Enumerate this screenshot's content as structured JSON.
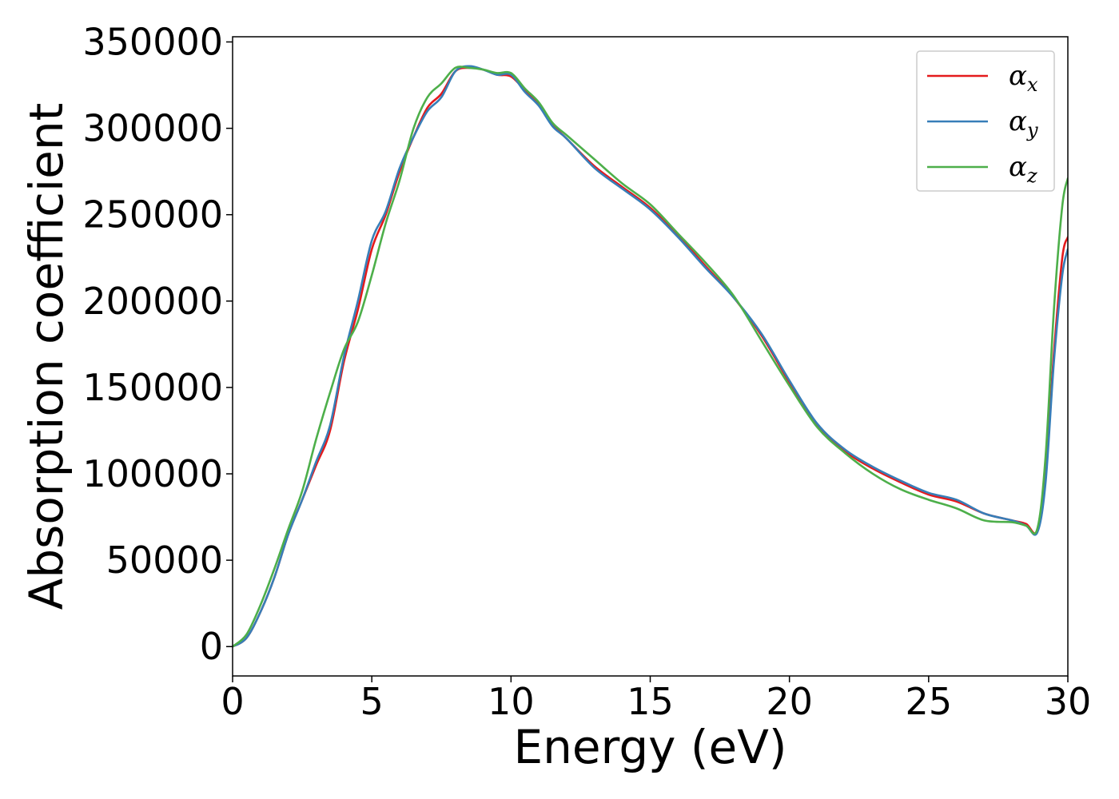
{
  "chart_data": {
    "type": "line",
    "title": "",
    "xlabel": "Energy (eV)",
    "ylabel": "Absorption coefficient",
    "xlim": [
      0,
      30
    ],
    "ylim": [
      -17000,
      353000
    ],
    "xticks": [
      "0",
      "5",
      "10",
      "15",
      "20",
      "25",
      "30"
    ],
    "yticks": [
      "0",
      "50000",
      "100000",
      "150000",
      "200000",
      "250000",
      "300000",
      "350000"
    ],
    "grid": false,
    "legend_position": "upper right",
    "series": [
      {
        "name": "α_x",
        "name_base": "α",
        "name_sub": "x",
        "color": "#e41a1c",
        "x": [
          0,
          0.5,
          1,
          1.5,
          2,
          2.5,
          3,
          3.5,
          4,
          4.5,
          5,
          5.5,
          6,
          6.5,
          7,
          7.5,
          8,
          8.5,
          9,
          9.5,
          10,
          10.5,
          11,
          11.5,
          12,
          13,
          14,
          15,
          16,
          17,
          18,
          19,
          20,
          21,
          22,
          23,
          24,
          25,
          26,
          27,
          28,
          28.5,
          28.9,
          29.2,
          29.5,
          29.8,
          30
        ],
        "y": [
          0,
          5000,
          20000,
          40000,
          65000,
          85000,
          105000,
          125000,
          165000,
          195000,
          230000,
          250000,
          275000,
          295000,
          312000,
          320000,
          333000,
          335000,
          334000,
          331000,
          330000,
          322000,
          314000,
          302000,
          294000,
          278000,
          266000,
          254000,
          238000,
          220000,
          202000,
          180000,
          153000,
          128000,
          113000,
          103000,
          95000,
          88000,
          84000,
          77000,
          73000,
          71000,
          67000,
          100000,
          170000,
          225000,
          237000
        ]
      },
      {
        "name": "α_y",
        "name_base": "α",
        "name_sub": "y",
        "color": "#377eb8",
        "x": [
          0,
          0.5,
          1,
          1.5,
          2,
          2.5,
          3,
          3.5,
          4,
          4.5,
          5,
          5.5,
          6,
          6.5,
          7,
          7.5,
          8,
          8.5,
          9,
          9.5,
          10,
          10.5,
          11,
          11.5,
          12,
          13,
          14,
          15,
          16,
          17,
          18,
          19,
          20,
          21,
          22,
          23,
          24,
          25,
          26,
          27,
          28,
          28.5,
          28.9,
          29.2,
          29.5,
          29.8,
          30
        ],
        "y": [
          0,
          5000,
          20000,
          40000,
          65000,
          85000,
          107000,
          128000,
          168000,
          200000,
          235000,
          252000,
          277000,
          295000,
          310000,
          318000,
          333000,
          336000,
          334000,
          331000,
          331000,
          321000,
          313000,
          301000,
          294000,
          277000,
          265000,
          253000,
          237000,
          219000,
          202000,
          181000,
          154000,
          129000,
          114000,
          104000,
          96000,
          89000,
          85000,
          77000,
          73000,
          70000,
          66000,
          95000,
          165000,
          215000,
          230000
        ]
      },
      {
        "name": "α_z",
        "name_base": "α",
        "name_sub": "z",
        "color": "#4daf4a",
        "x": [
          0,
          0.5,
          1,
          1.5,
          2,
          2.5,
          3,
          3.5,
          4,
          4.5,
          5,
          5.5,
          6,
          6.5,
          7,
          7.5,
          8,
          8.5,
          9,
          9.5,
          10,
          10.5,
          11,
          11.5,
          12,
          13,
          14,
          15,
          16,
          17,
          18,
          19,
          20,
          21,
          22,
          23,
          24,
          25,
          26,
          27,
          28,
          28.5,
          28.9,
          29.2,
          29.5,
          29.8,
          30
        ],
        "y": [
          0,
          7000,
          24000,
          45000,
          68000,
          90000,
          120000,
          147000,
          172000,
          188000,
          215000,
          245000,
          270000,
          300000,
          318000,
          326000,
          335000,
          335000,
          334000,
          332000,
          332000,
          323000,
          315000,
          303000,
          296000,
          282000,
          268000,
          256000,
          239000,
          222000,
          203000,
          177000,
          151000,
          127000,
          112000,
          100000,
          91000,
          85000,
          80000,
          73000,
          72000,
          70000,
          68000,
          110000,
          195000,
          255000,
          271000
        ]
      }
    ]
  }
}
